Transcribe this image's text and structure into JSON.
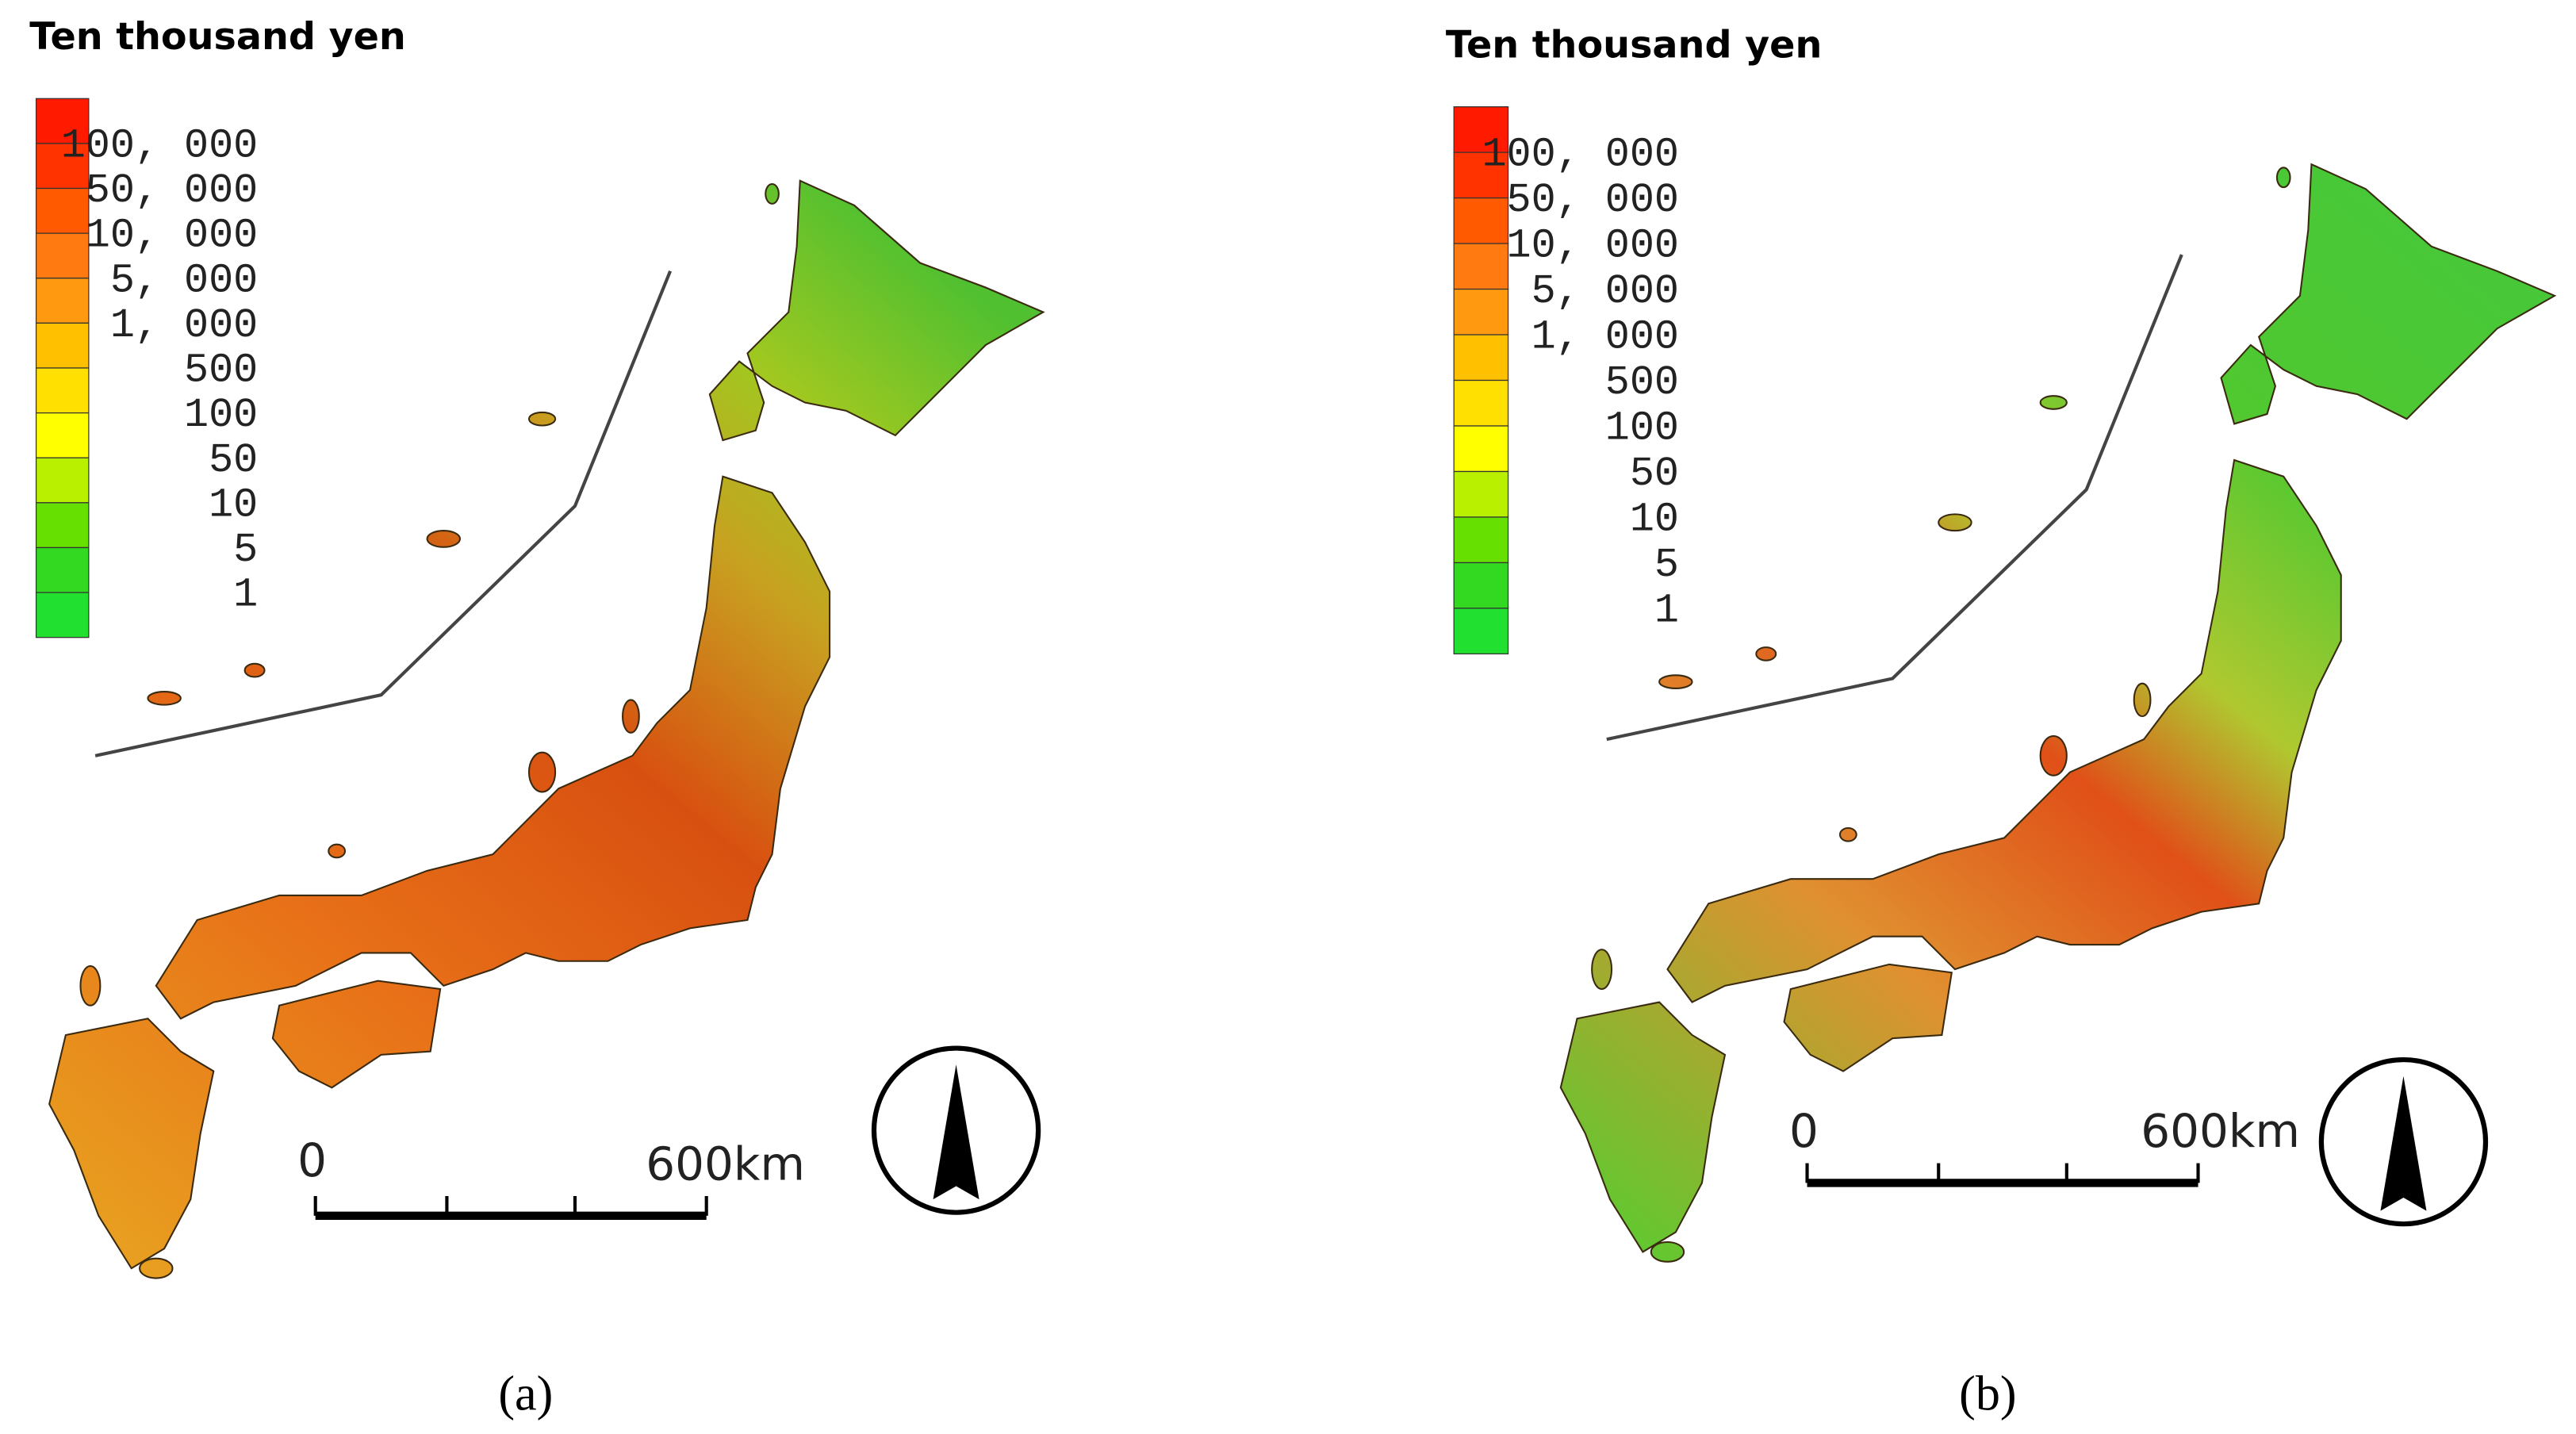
{
  "panels": [
    {
      "legend_title": "Ten thousand yen",
      "legend_labels": [
        "100, 000",
        "50, 000",
        "10, 000",
        "5, 000",
        "1, 000",
        "500",
        "100",
        "50",
        "10",
        "5",
        "1"
      ],
      "legend_colors": [
        "#ff1a00",
        "#ff3300",
        "#ff5a00",
        "#ff7a10",
        "#ff9a10",
        "#ffc000",
        "#ffe000",
        "#ffff00",
        "#b8f000",
        "#66e000",
        "#33d820",
        "#22e030"
      ],
      "scale_labels": [
        "0",
        "600km"
      ],
      "caption": "(a)"
    },
    {
      "legend_title": "Ten thousand yen",
      "legend_labels": [
        "100, 000",
        "50, 000",
        "10, 000",
        "5, 000",
        "1, 000",
        "500",
        "100",
        "50",
        "10",
        "5",
        "1"
      ],
      "legend_colors": [
        "#ff1a00",
        "#ff3300",
        "#ff5a00",
        "#ff7a10",
        "#ff9a10",
        "#ffc000",
        "#ffe000",
        "#ffff00",
        "#b8f000",
        "#66e000",
        "#33d820",
        "#22e030"
      ],
      "scale_labels": [
        "0",
        "600km"
      ],
      "caption": "(b)"
    }
  ]
}
